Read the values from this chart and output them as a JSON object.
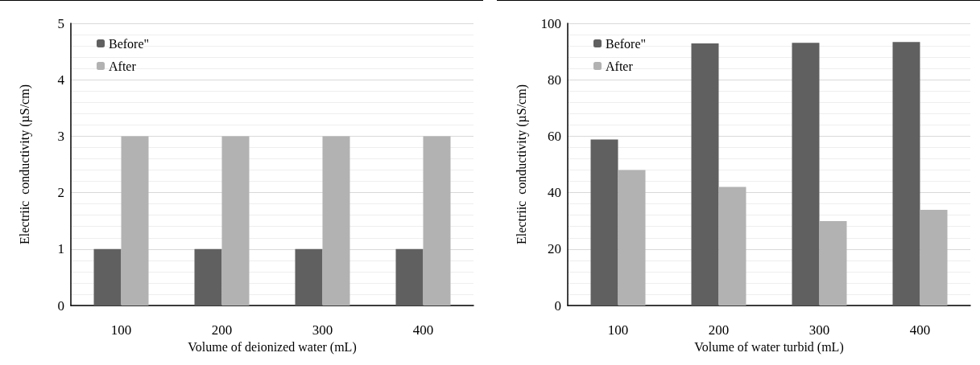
{
  "chart_data": [
    {
      "type": "bar",
      "xlabel": "Volume of deionized water (mL)",
      "ylabel": "Electriic  conductivity (µS/cm)",
      "categories": [
        "100",
        "200",
        "300",
        "400"
      ],
      "series": [
        {
          "name": "Before\"",
          "color": "#606060",
          "values": [
            1,
            1,
            1,
            1
          ]
        },
        {
          "name": "After",
          "color": "#b2b2b2",
          "values": [
            3,
            3,
            3,
            3
          ]
        }
      ],
      "ylim": [
        0,
        5
      ],
      "yticks": [
        0,
        1,
        2,
        3,
        4,
        5
      ],
      "grid": "y",
      "legend": "top left"
    },
    {
      "type": "bar",
      "xlabel": "Volume of water turbid (mL)",
      "ylabel": "Electriic  conductivity (µS/cm)",
      "categories": [
        "100",
        "200",
        "300",
        "400"
      ],
      "series": [
        {
          "name": "Before\"",
          "color": "#606060",
          "values": [
            58.8,
            92.9,
            93.1,
            93.4
          ]
        },
        {
          "name": "After",
          "color": "#b2b2b2",
          "values": [
            48.0,
            42.0,
            29.9,
            33.9
          ]
        }
      ],
      "ylim": [
        0,
        100
      ],
      "yticks": [
        0,
        20,
        40,
        60,
        80,
        100
      ],
      "grid": "y",
      "legend": "top left"
    }
  ]
}
